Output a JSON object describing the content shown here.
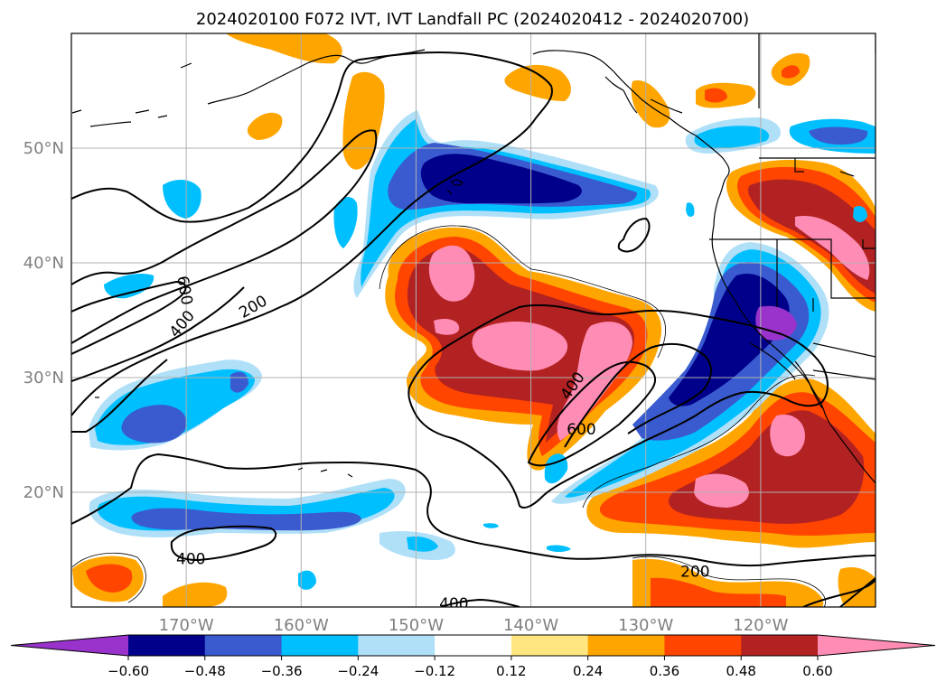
{
  "title": "2024020100 F072 IVT, IVT Landfall PC (2024020412 - 2024020700)",
  "map": {
    "lon_range": [
      -180,
      -110
    ],
    "lat_range": [
      10,
      60
    ],
    "lat_ticks": [
      {
        "value": 20,
        "label": "20°N"
      },
      {
        "value": 30,
        "label": "30°N"
      },
      {
        "value": 40,
        "label": "40°N"
      },
      {
        "value": 50,
        "label": "50°N"
      }
    ],
    "lon_ticks": [
      {
        "value": -170,
        "label": "170°W"
      },
      {
        "value": -160,
        "label": "160°W"
      },
      {
        "value": -150,
        "label": "150°W"
      },
      {
        "value": -140,
        "label": "140°W"
      },
      {
        "value": -130,
        "label": "130°W"
      },
      {
        "value": -120,
        "label": "120°W"
      }
    ],
    "grid": true,
    "contour_labels": [
      {
        "text": "600",
        "lon": -170.1,
        "lat": 37.6,
        "rotate": 80
      },
      {
        "text": "400",
        "lon": -170.4,
        "lat": 34.7,
        "rotate": -50
      },
      {
        "text": "200",
        "lon": -164.2,
        "lat": 36.2,
        "rotate": -30
      },
      {
        "text": "400",
        "lon": -136.4,
        "lat": 29.3,
        "rotate": -55
      },
      {
        "text": "600",
        "lon": -135.6,
        "lat": 25.5,
        "rotate": 0
      },
      {
        "text": "400",
        "lon": -169.6,
        "lat": 14.2,
        "rotate": 0
      },
      {
        "text": "200",
        "lon": -125.7,
        "lat": 13.1,
        "rotate": 0
      },
      {
        "text": "400",
        "lon": -146.7,
        "lat": 10.3,
        "rotate": 0
      }
    ]
  },
  "colorbar": {
    "colors": [
      "#9933cc",
      "#00008b",
      "#3a5bcf",
      "#00bfff",
      "#b0e0f8",
      "#ffffff",
      "#ffe680",
      "#ffa500",
      "#ff4500",
      "#b22222",
      "#ff8cb4"
    ],
    "tick_labels": [
      "−0.60",
      "−0.48",
      "−0.36",
      "−0.24",
      "−0.12",
      "0.12",
      "0.24",
      "0.36",
      "0.48",
      "0.60"
    ]
  }
}
